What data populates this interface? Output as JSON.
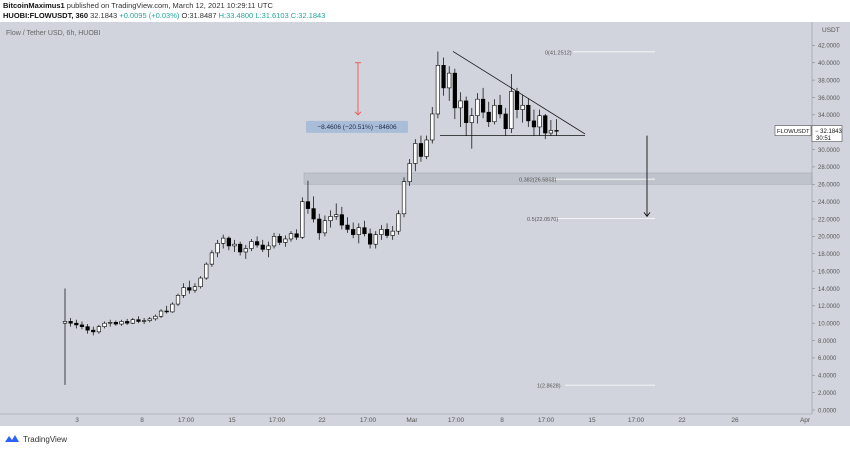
{
  "header": {
    "author": "BitcoinMaximus1",
    "published_text": "published on TradingView.com, March 12, 2021 10:29:11 UTC",
    "symbol": "HUOBI:FLOWUSDT, 360",
    "price": "32.1843",
    "change": "+0.0095 (+0.03%)",
    "open": "O:31.8487",
    "high": "H:33.4800",
    "low": "L:31.6103",
    "close": "C:32.1843"
  },
  "footer": {
    "brand": "TradingView"
  },
  "colors": {
    "background": "#d1d4dc",
    "candle": "#000000",
    "arrow_red": "#ef5350",
    "label_blue": "#a9bcd8",
    "fib_line": "#ffffff",
    "zone": "#bfc3cb"
  },
  "chart_data": {
    "type": "candlestick",
    "title": "Flow / Tether USD, 6h, HUOBI",
    "currency_label": "USDT",
    "ylim": [
      0,
      44
    ],
    "y_ticks": [
      "0.0000",
      "2.0000",
      "4.0000",
      "6.0000",
      "8.0000",
      "10.0000",
      "12.0000",
      "14.0000",
      "16.0000",
      "18.0000",
      "20.0000",
      "22.0000",
      "24.0000",
      "26.0000",
      "28.0000",
      "30.0000",
      "32.0000",
      "34.0000",
      "36.0000",
      "38.0000",
      "40.0000",
      "42.0000"
    ],
    "x_ticks": [
      "3",
      "8",
      "17:00",
      "15",
      "17:00",
      "22",
      "17:00",
      "Mar",
      "17:00",
      "8",
      "17:00",
      "15",
      "17:00",
      "22",
      "26",
      "Apr"
    ],
    "price_tag": {
      "symbol": "FLOWUSDT",
      "value": "32.1843",
      "countdown": "30:51"
    },
    "measure_label": "−8.4606 (−20.51%) −84606",
    "fib_levels": [
      {
        "label": "0(41.2512)",
        "value": 41.2512
      },
      {
        "label": "0.382(26.5868)",
        "value": 26.5868
      },
      {
        "label": "0.5(22.0570)",
        "value": 22.057
      },
      {
        "label": "1(2.8628)",
        "value": 2.8628
      }
    ],
    "support_zone": [
      26.0,
      27.3
    ],
    "triangle": {
      "top_start": 41.3,
      "apex": 31.8,
      "base": 31.6
    },
    "candles_ohlc": [
      [
        10,
        14,
        2.9,
        10.2
      ],
      [
        10.2,
        10.6,
        9.6,
        10
      ],
      [
        10,
        10.4,
        9.4,
        9.8
      ],
      [
        9.8,
        10.2,
        9.3,
        9.6
      ],
      [
        9.6,
        9.9,
        8.8,
        9.2
      ],
      [
        9.2,
        9.6,
        8.6,
        9
      ],
      [
        9,
        9.8,
        8.8,
        9.6
      ],
      [
        9.6,
        10.2,
        9.4,
        10
      ],
      [
        10,
        10.4,
        9.6,
        10.1
      ],
      [
        10.1,
        10.3,
        9.7,
        9.9
      ],
      [
        9.9,
        10.4,
        9.7,
        10.2
      ],
      [
        10.2,
        10.5,
        9.8,
        10
      ],
      [
        10,
        10.6,
        9.9,
        10.4
      ],
      [
        10.4,
        10.8,
        10,
        10.2
      ],
      [
        10.2,
        10.6,
        9.9,
        10.3
      ],
      [
        10.3,
        10.7,
        10.1,
        10.5
      ],
      [
        10.5,
        11,
        10.3,
        10.8
      ],
      [
        10.8,
        11.6,
        10.6,
        11.4
      ],
      [
        11.4,
        12,
        11.1,
        11.3
      ],
      [
        11.3,
        12.4,
        11.2,
        12.2
      ],
      [
        12.2,
        13.4,
        12,
        13.2
      ],
      [
        13.2,
        14.6,
        12.9,
        14.1
      ],
      [
        14.1,
        14.9,
        13.4,
        13.8
      ],
      [
        13.8,
        14.6,
        13.5,
        14.2
      ],
      [
        14.2,
        15.4,
        14,
        15.2
      ],
      [
        15.2,
        17,
        15,
        16.8
      ],
      [
        16.8,
        18.4,
        16.5,
        18.1
      ],
      [
        18.1,
        19.6,
        17.6,
        19.2
      ],
      [
        19.2,
        20.2,
        18.6,
        19.8
      ],
      [
        19.8,
        20,
        18.4,
        18.9
      ],
      [
        18.9,
        19.6,
        18.2,
        19.1
      ],
      [
        19.1,
        19.4,
        17.8,
        18.2
      ],
      [
        18.2,
        19,
        17.4,
        18.6
      ],
      [
        18.6,
        19.7,
        18.3,
        19.4
      ],
      [
        19.4,
        20,
        18.7,
        19
      ],
      [
        19,
        19.6,
        18.2,
        18.5
      ],
      [
        18.5,
        19.4,
        17.6,
        18.9
      ],
      [
        18.9,
        20.4,
        18.6,
        20
      ],
      [
        20,
        20.3,
        19,
        19.3
      ],
      [
        19.3,
        20.1,
        18.8,
        19.7
      ],
      [
        19.7,
        20.6,
        19.4,
        20.3
      ],
      [
        20.3,
        20.8,
        19.6,
        19.9
      ],
      [
        19.9,
        24.5,
        19.7,
        24
      ],
      [
        24,
        26.4,
        22.6,
        23.2
      ],
      [
        23.2,
        24.6,
        21.6,
        22
      ],
      [
        22,
        22.6,
        19.6,
        20.4
      ],
      [
        20.4,
        22.4,
        20,
        21.8
      ],
      [
        21.8,
        23,
        21,
        22.3
      ],
      [
        22.3,
        23.8,
        21.9,
        22.5
      ],
      [
        22.5,
        23.4,
        20.8,
        21.3
      ],
      [
        21.3,
        22.2,
        20.4,
        20.8
      ],
      [
        20.8,
        21.6,
        19.8,
        20.2
      ],
      [
        20.2,
        21.5,
        19.2,
        21
      ],
      [
        21,
        21.8,
        20,
        20.3
      ],
      [
        20.3,
        20.9,
        18.6,
        19.1
      ],
      [
        19.1,
        20.6,
        18.6,
        20.2
      ],
      [
        20.2,
        21.3,
        19.6,
        20.8
      ],
      [
        20.8,
        21.5,
        19.8,
        20.1
      ],
      [
        20.1,
        21.2,
        19.6,
        20.6
      ],
      [
        20.6,
        23,
        20.2,
        22.6
      ],
      [
        22.6,
        26.8,
        22.2,
        26.3
      ],
      [
        26.3,
        28.9,
        25.8,
        28.4
      ],
      [
        28.4,
        31.2,
        27.5,
        30.7
      ],
      [
        30.7,
        31.6,
        28.6,
        29.2
      ],
      [
        29.2,
        31.6,
        28.9,
        31.1
      ],
      [
        31.1,
        34.9,
        30.7,
        34.1
      ],
      [
        34.1,
        41.3,
        33.6,
        39.7
      ],
      [
        39.7,
        40.6,
        36.2,
        37.1
      ],
      [
        37.1,
        39.6,
        35.6,
        38.8
      ],
      [
        38.8,
        39.3,
        33.5,
        34.8
      ],
      [
        34.8,
        36.6,
        32.6,
        35.6
      ],
      [
        35.6,
        36.1,
        31.6,
        33.1
      ],
      [
        33.1,
        34.8,
        30.1,
        33.9
      ],
      [
        33.9,
        36.5,
        33,
        35.8
      ],
      [
        35.8,
        37.1,
        33.6,
        34.3
      ],
      [
        34.3,
        35.5,
        32.6,
        33.2
      ],
      [
        33.2,
        35.8,
        32.9,
        35.1
      ],
      [
        35.1,
        36.3,
        33.6,
        34.1
      ],
      [
        34.1,
        34.8,
        31.6,
        32.4
      ],
      [
        32.4,
        38.7,
        31.9,
        36.7
      ],
      [
        36.7,
        37.1,
        33.6,
        34.6
      ],
      [
        34.6,
        36.3,
        33.1,
        35.1
      ],
      [
        35.1,
        35.9,
        32.6,
        33.3
      ],
      [
        33.3,
        34.6,
        31.6,
        32.6
      ],
      [
        32.6,
        34.6,
        31.6,
        33.9
      ],
      [
        33.9,
        34.1,
        31.2,
        31.9
      ],
      [
        31.9,
        33.4,
        31.6,
        32.2
      ],
      [
        32.2,
        33.5,
        31.6,
        32.18
      ]
    ]
  }
}
